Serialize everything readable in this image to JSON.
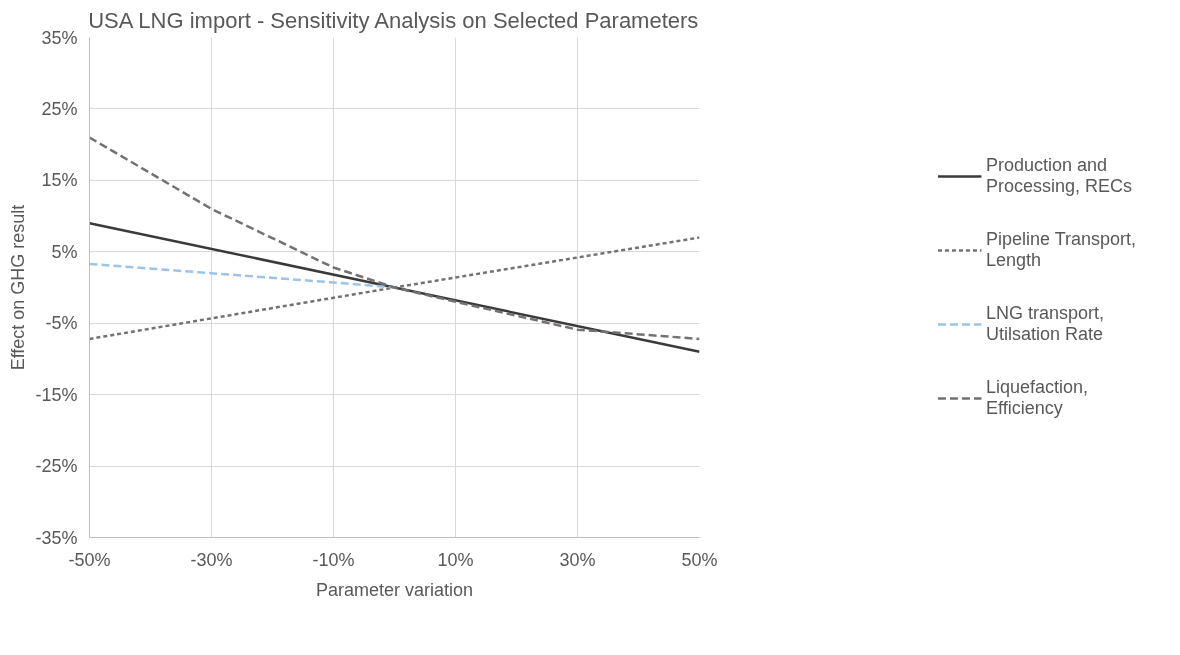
{
  "chart_data": {
    "type": "line",
    "title": "USA LNG import - Sensitivity Analysis on Selected Parameters",
    "xlabel": "Parameter variation",
    "ylabel": "Effect on GHG result",
    "xlim": [
      -50,
      50
    ],
    "xticks": [
      {
        "value": -50,
        "label": "-50%"
      },
      {
        "value": -30,
        "label": "-30%"
      },
      {
        "value": -10,
        "label": "-10%"
      },
      {
        "value": 10,
        "label": "10%"
      },
      {
        "value": 30,
        "label": "30%"
      },
      {
        "value": 50,
        "label": "50%"
      }
    ],
    "ylim": [
      -35,
      35
    ],
    "yticks": [
      {
        "value": -35,
        "label": "-35%"
      },
      {
        "value": -25,
        "label": "-25%"
      },
      {
        "value": -15,
        "label": "-15%"
      },
      {
        "value": -5,
        "label": "-5%"
      },
      {
        "value": 5,
        "label": "5%"
      },
      {
        "value": 15,
        "label": "15%"
      },
      {
        "value": 25,
        "label": "25%"
      },
      {
        "value": 35,
        "label": "35%"
      }
    ],
    "grid": true,
    "legend": "right",
    "marker": "none",
    "series": [
      {
        "name": "Production and Processing, RECs",
        "color": "#3a3a3a",
        "line_style": "solid",
        "x": [
          -50,
          0,
          50
        ],
        "values": [
          9,
          0,
          -9
        ]
      },
      {
        "name": "Pipeline Transport, Length",
        "color": "#767171",
        "line_style": "dotted",
        "x": [
          -50,
          0,
          50
        ],
        "values": [
          -7.2,
          0,
          7
        ]
      },
      {
        "name": "LNG transport, Utilsation Rate",
        "color": "#9dc3e6",
        "line_style": "dashed",
        "x": [
          -50,
          -30,
          -10,
          0
        ],
        "values": [
          3.3,
          2.0,
          0.7,
          0
        ]
      },
      {
        "name": "Liquefaction, Efficiency",
        "color": "#767171",
        "line_style": "dashed",
        "x": [
          -50,
          -30,
          -10,
          0,
          10,
          30,
          50
        ],
        "values": [
          21,
          11,
          2.8,
          0,
          -2,
          -5.9,
          -7.2
        ]
      }
    ]
  }
}
